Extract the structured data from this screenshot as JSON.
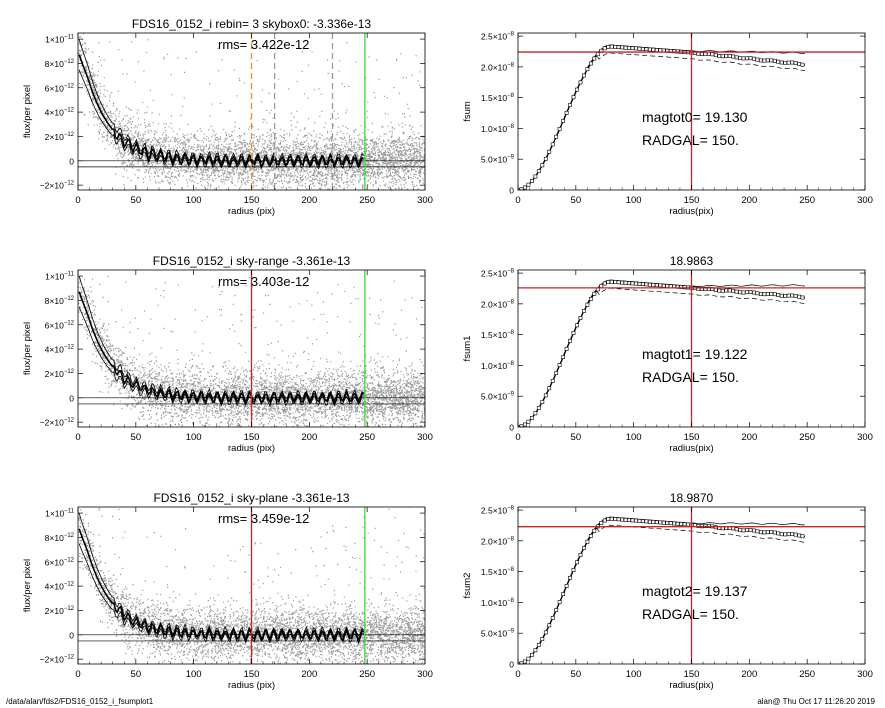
{
  "footer": {
    "path": "/data/alan/fds2/FDS16_0152_i_fsumplot1",
    "user_time": "alan@  Thu Oct 17 11:26:20 2019"
  },
  "colors": {
    "scatter": "#9a9a9a",
    "profile": "#000000",
    "red_line": "#cc2222",
    "green_line": "#33dd33",
    "orange_line": "#e8902a",
    "gray_dashed": "#999999"
  },
  "chart_data": [
    {
      "type": "scatter",
      "title": "FDS16_0152_i rebin= 3    skybox0: -3.336e-13",
      "annotation": "rms= 3.422e-12",
      "xlabel": "radius (pix)",
      "ylabel": "flux/per pixel",
      "xlim": [
        0,
        300
      ],
      "ylim": [
        -2.4e-12,
        1.05e-11
      ],
      "xticks": [
        "0",
        "50",
        "100",
        "150",
        "200",
        "250",
        "300"
      ],
      "yticks": [
        {
          "v": -2e-12,
          "m": "−2×10",
          "e": "−12"
        },
        {
          "v": 0,
          "m": "0",
          "e": ""
        },
        {
          "v": 2e-12,
          "m": "2×10",
          "e": "−12"
        },
        {
          "v": 4e-12,
          "m": "4×10",
          "e": "−12"
        },
        {
          "v": 6e-12,
          "m": "6×10",
          "e": "−12"
        },
        {
          "v": 8e-12,
          "m": "8×10",
          "e": "−12"
        },
        {
          "v": 1e-11,
          "m": "1×10",
          "e": "−11"
        }
      ],
      "profile_scale": 1e-11,
      "profile_tau": 22,
      "sky_level": -3.336e-13,
      "vlines": [
        {
          "x": 150,
          "color": "#e8902a",
          "dash": true
        },
        {
          "x": 170,
          "color": "#999999",
          "dash": true
        },
        {
          "x": 220,
          "color": "#999999",
          "dash": true
        },
        {
          "x": 248,
          "color": "#33dd33",
          "dash": false
        }
      ]
    },
    {
      "type": "line",
      "title": "",
      "annotation_lines": [
        "magtot0=  19.130",
        "RADGAL=    150."
      ],
      "xlabel": "radius(pix)",
      "ylabel": "fsum",
      "xlim": [
        0,
        300
      ],
      "ylim": [
        0,
        2.55e-08
      ],
      "xticks": [
        "0",
        "50",
        "100",
        "150",
        "200",
        "250",
        "300"
      ],
      "yticks": [
        {
          "v": 0,
          "m": "0",
          "e": ""
        },
        {
          "v": 5e-09,
          "m": "5.0×10",
          "e": "−9"
        },
        {
          "v": 1e-08,
          "m": "1.0×10",
          "e": "−8"
        },
        {
          "v": 1.5e-08,
          "m": "1.5×10",
          "e": "−8"
        },
        {
          "v": 2e-08,
          "m": "2.0×10",
          "e": "−8"
        },
        {
          "v": 2.5e-08,
          "m": "2.5×10",
          "e": "−8"
        }
      ],
      "plateau": 2.33e-08,
      "hline": 2.24e-08,
      "vline": 150,
      "tail_end": 2.04e-08
    },
    {
      "type": "scatter",
      "title": "FDS16_0152_i sky-range -3.361e-13",
      "annotation": "rms= 3.403e-12",
      "xlabel": "radius (pix)",
      "ylabel": "flux/per pixel",
      "xlim": [
        0,
        300
      ],
      "ylim": [
        -2.4e-12,
        1.05e-11
      ],
      "xticks": [
        "0",
        "50",
        "100",
        "150",
        "200",
        "250",
        "300"
      ],
      "yticks": [
        {
          "v": -2e-12,
          "m": "−2×10",
          "e": "−12"
        },
        {
          "v": 0,
          "m": "0",
          "e": ""
        },
        {
          "v": 2e-12,
          "m": "2×10",
          "e": "−12"
        },
        {
          "v": 4e-12,
          "m": "4×10",
          "e": "−12"
        },
        {
          "v": 6e-12,
          "m": "6×10",
          "e": "−12"
        },
        {
          "v": 8e-12,
          "m": "8×10",
          "e": "−12"
        },
        {
          "v": 1e-11,
          "m": "1×10",
          "e": "−11"
        }
      ],
      "profile_scale": 1e-11,
      "profile_tau": 22,
      "sky_level": -3.361e-13,
      "vlines": [
        {
          "x": 150,
          "color": "#cc2222",
          "dash": false
        },
        {
          "x": 248,
          "color": "#33dd33",
          "dash": false
        }
      ]
    },
    {
      "type": "line",
      "title": "18.9863",
      "annotation_lines": [
        "magtot1=  19.122",
        "RADGAL=    150."
      ],
      "xlabel": "radius(pix)",
      "ylabel": "fsum1",
      "xlim": [
        0,
        300
      ],
      "ylim": [
        0,
        2.55e-08
      ],
      "xticks": [
        "0",
        "50",
        "100",
        "150",
        "200",
        "250",
        "300"
      ],
      "yticks": [
        {
          "v": 0,
          "m": "0",
          "e": ""
        },
        {
          "v": 5e-09,
          "m": "5.0×10",
          "e": "−9"
        },
        {
          "v": 1e-08,
          "m": "1.0×10",
          "e": "−8"
        },
        {
          "v": 1.5e-08,
          "m": "1.5×10",
          "e": "−8"
        },
        {
          "v": 2e-08,
          "m": "2.0×10",
          "e": "−8"
        },
        {
          "v": 2.5e-08,
          "m": "2.5×10",
          "e": "−8"
        }
      ],
      "plateau": 2.36e-08,
      "hline": 2.26e-08,
      "vline": 150,
      "tail_end": 2.11e-08
    },
    {
      "type": "scatter",
      "title": "FDS16_0152_i sky-plane -3.361e-13",
      "annotation": "rms= 3.459e-12",
      "xlabel": "radius (pix)",
      "ylabel": "flux/per pixel",
      "xlim": [
        0,
        300
      ],
      "ylim": [
        -2.4e-12,
        1.05e-11
      ],
      "xticks": [
        "0",
        "50",
        "100",
        "150",
        "200",
        "250",
        "300"
      ],
      "yticks": [
        {
          "v": -2e-12,
          "m": "−2×10",
          "e": "−12"
        },
        {
          "v": 0,
          "m": "0",
          "e": ""
        },
        {
          "v": 2e-12,
          "m": "2×10",
          "e": "−12"
        },
        {
          "v": 4e-12,
          "m": "4×10",
          "e": "−12"
        },
        {
          "v": 6e-12,
          "m": "6×10",
          "e": "−12"
        },
        {
          "v": 8e-12,
          "m": "8×10",
          "e": "−12"
        },
        {
          "v": 1e-11,
          "m": "1×10",
          "e": "−11"
        }
      ],
      "profile_scale": 1e-11,
      "profile_tau": 22,
      "sky_level": -3.361e-13,
      "vlines": [
        {
          "x": 150,
          "color": "#cc2222",
          "dash": false
        },
        {
          "x": 248,
          "color": "#33dd33",
          "dash": false
        }
      ]
    },
    {
      "type": "line",
      "title": "18.9870",
      "annotation_lines": [
        "magtot2=  19.137",
        "RADGAL=    150."
      ],
      "xlabel": "radius(pix)",
      "ylabel": "fsum2",
      "xlim": [
        0,
        300
      ],
      "ylim": [
        0,
        2.55e-08
      ],
      "xticks": [
        "0",
        "50",
        "100",
        "150",
        "200",
        "250",
        "300"
      ],
      "yticks": [
        {
          "v": 0,
          "m": "0",
          "e": ""
        },
        {
          "v": 5e-09,
          "m": "5.0×10",
          "e": "−9"
        },
        {
          "v": 1e-08,
          "m": "1.0×10",
          "e": "−8"
        },
        {
          "v": 1.5e-08,
          "m": "1.5×10",
          "e": "−8"
        },
        {
          "v": 2e-08,
          "m": "2.0×10",
          "e": "−8"
        },
        {
          "v": 2.5e-08,
          "m": "2.5×10",
          "e": "−8"
        }
      ],
      "plateau": 2.36e-08,
      "hline": 2.23e-08,
      "vline": 150,
      "tail_end": 2.08e-08
    }
  ]
}
